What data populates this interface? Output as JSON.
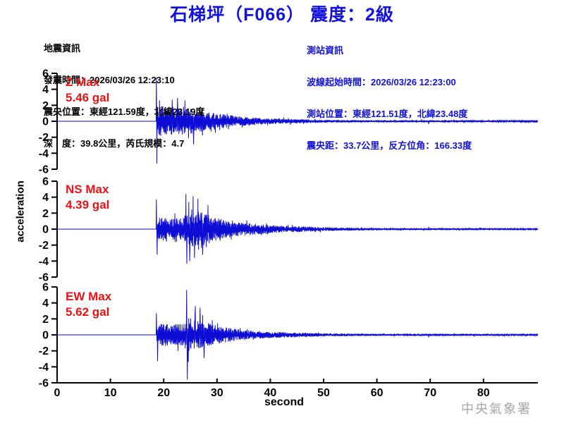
{
  "header": {
    "title": "石梯坪（F066） 震度：2級"
  },
  "event_info": {
    "heading": "地震資訊",
    "lines": [
      "發震時間：2026/03/26 12:23:10",
      "震央位置：東經121.59度，北緯23.19度",
      "深　度：39.8公里，芮氏規模：4.7"
    ]
  },
  "station_info": {
    "heading": "測站資訊",
    "lines": [
      "波線起始時間：2026/03/26 12:23:00",
      "測站位置：東經121.51度，北緯23.48度",
      "震央距：33.7公里，反方位角：166.33度"
    ]
  },
  "watermark": "中央氣象署",
  "colors": {
    "title_blue": "#1212e0",
    "info_blue": "#1212e0",
    "label_red": "#ee1111",
    "wave_blue": "#0d0dd6",
    "axis_black": "#000000",
    "watermark_gray": "#a8a8a8"
  },
  "chart_data": {
    "type": "line",
    "xlabel": "second",
    "ylabel": "acceleration",
    "xlim": [
      0,
      90
    ],
    "ylim": [
      -6,
      6
    ],
    "x_ticks": [
      0,
      10,
      20,
      30,
      40,
      50,
      60,
      70,
      80
    ],
    "y_ticks": [
      6,
      4,
      2,
      0,
      -2,
      -4,
      -6
    ],
    "grid": false,
    "units": "gal",
    "panels": [
      {
        "channel": "Z",
        "max_label": "Z Max",
        "max_text": "5.46 gal",
        "max_gal": 5.46,
        "p_onset_s": 18.6,
        "seed": 101,
        "envelope": [
          [
            18.6,
            2.0
          ],
          [
            22,
            1.8
          ],
          [
            26,
            1.5
          ],
          [
            30,
            1.0
          ],
          [
            35,
            0.55
          ],
          [
            40,
            0.35
          ],
          [
            50,
            0.18
          ],
          [
            60,
            0.12
          ],
          [
            90,
            0.08
          ]
        ],
        "spikes": [
          [
            18.65,
            5.46
          ],
          [
            18.72,
            -5.3
          ],
          [
            19.2,
            2.6
          ],
          [
            21.6,
            2.7
          ],
          [
            22.6,
            2.9
          ],
          [
            24.0,
            2.6
          ],
          [
            25.6,
            -2.9
          ],
          [
            68.4,
            0.25
          ],
          [
            69.7,
            -0.35
          ]
        ]
      },
      {
        "channel": "NS",
        "max_label": "NS Max",
        "max_text": "4.39 gal",
        "max_gal": 4.39,
        "p_onset_s": 18.6,
        "seed": 202,
        "envelope": [
          [
            18.6,
            1.6
          ],
          [
            21,
            1.3
          ],
          [
            23.8,
            1.4
          ],
          [
            24.2,
            2.6
          ],
          [
            27,
            2.2
          ],
          [
            30,
            1.4
          ],
          [
            35,
            0.8
          ],
          [
            40,
            0.5
          ],
          [
            50,
            0.25
          ],
          [
            60,
            0.15
          ],
          [
            90,
            0.1
          ]
        ],
        "spikes": [
          [
            18.65,
            3.7
          ],
          [
            18.75,
            -3.2
          ],
          [
            24.15,
            4.39
          ],
          [
            24.35,
            -4.35
          ],
          [
            24.9,
            -4.0
          ],
          [
            25.5,
            4.1
          ],
          [
            25.8,
            -3.6
          ],
          [
            26.4,
            3.8
          ],
          [
            27.3,
            -3.2
          ],
          [
            28.3,
            3.0
          ],
          [
            69.7,
            0.3
          ]
        ]
      },
      {
        "channel": "EW",
        "max_label": "EW Max",
        "max_text": "5.62 gal",
        "max_gal": 5.62,
        "p_onset_s": 18.6,
        "seed": 303,
        "envelope": [
          [
            18.6,
            1.5
          ],
          [
            21,
            1.3
          ],
          [
            23.9,
            1.4
          ],
          [
            24.3,
            2.3
          ],
          [
            26,
            1.9
          ],
          [
            28,
            1.5
          ],
          [
            31,
            1.0
          ],
          [
            35,
            0.6
          ],
          [
            40,
            0.4
          ],
          [
            50,
            0.2
          ],
          [
            60,
            0.13
          ],
          [
            90,
            0.09
          ]
        ],
        "spikes": [
          [
            18.65,
            2.7
          ],
          [
            18.85,
            -3.3
          ],
          [
            24.3,
            5.62
          ],
          [
            24.42,
            -5.6
          ],
          [
            24.6,
            -3.4
          ],
          [
            25.9,
            3.6
          ],
          [
            26.8,
            3.4
          ],
          [
            27.6,
            -2.9
          ],
          [
            69.7,
            -0.3
          ]
        ]
      }
    ]
  }
}
